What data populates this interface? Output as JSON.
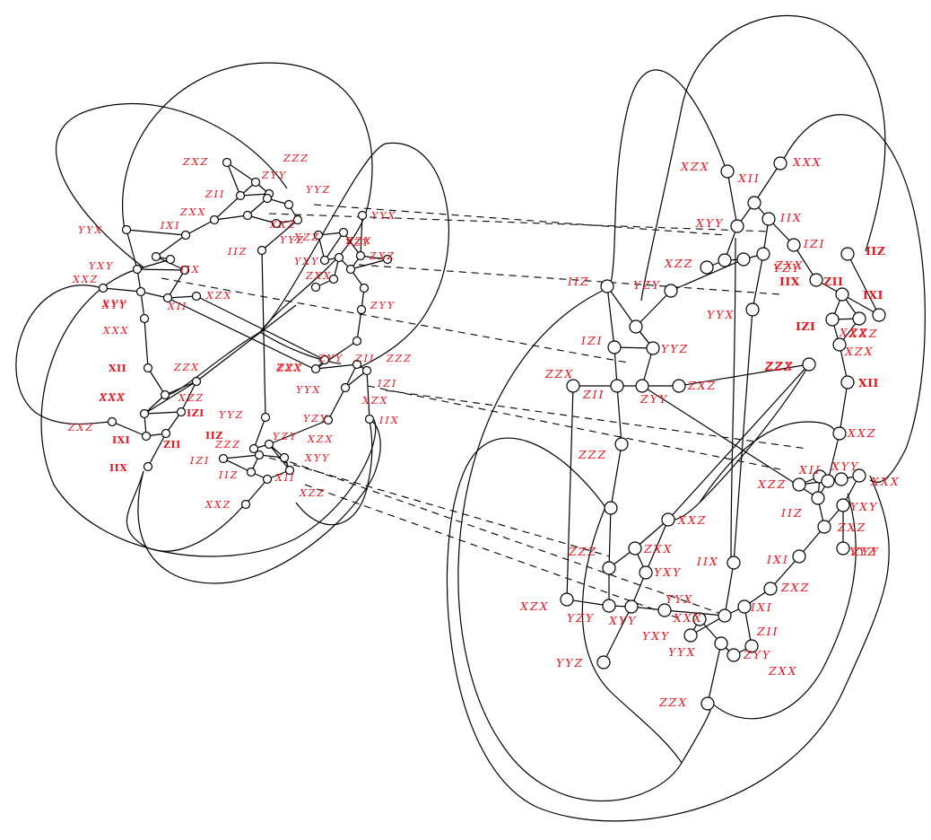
{
  "left_graph": {
    "labels": [
      {
        "t": "ZXZ",
        "bold": false
      },
      {
        "t": "ZZZ",
        "bold": false
      },
      {
        "t": "ZYY",
        "bold": false
      },
      {
        "t": "ZII",
        "bold": false
      },
      {
        "t": "YYZ",
        "bold": false
      },
      {
        "t": "ZXX",
        "bold": false
      },
      {
        "t": "IXI",
        "bold": false
      },
      {
        "t": "XXZ",
        "bold": false
      },
      {
        "t": "YXY",
        "bold": false
      },
      {
        "t": "YYX",
        "bold": false
      },
      {
        "t": "YYX",
        "bold": false
      },
      {
        "t": "IIZ",
        "bold": false
      },
      {
        "t": "XYY",
        "bold": false
      },
      {
        "t": "YYZ",
        "bold": false
      },
      {
        "t": "YZY",
        "bold": false
      },
      {
        "t": "XZZ",
        "bold": false
      },
      {
        "t": "YXY",
        "bold": false
      },
      {
        "t": "ZXX",
        "bold": false
      },
      {
        "t": "ZXZ",
        "bold": false
      },
      {
        "t": "XXZ",
        "bold": false
      },
      {
        "t": "IIX",
        "bold": false
      },
      {
        "t": "ZZX",
        "bold": false
      },
      {
        "t": "XZX",
        "bold": false
      },
      {
        "t": "XXX",
        "bold": false
      },
      {
        "t": "XYY",
        "bold": false
      },
      {
        "t": "XII",
        "bold": false
      },
      {
        "t": "ZYY",
        "bold": false
      },
      {
        "t": "XXX",
        "bold": false
      },
      {
        "t": "ZZX",
        "bold": false
      },
      {
        "t": "XII",
        "bold": true
      },
      {
        "t": "ZZX",
        "bold": false
      },
      {
        "t": "ZYY",
        "bold": false
      },
      {
        "t": "ZII",
        "bold": false
      },
      {
        "t": "ZZZ",
        "bold": false
      },
      {
        "t": "ZXX",
        "bold": false
      },
      {
        "t": "XXX",
        "bold": false
      },
      {
        "t": "XZZ",
        "bold": false
      },
      {
        "t": "YYX",
        "bold": false
      },
      {
        "t": "IZI",
        "bold": false
      },
      {
        "t": "XZX",
        "bold": false
      },
      {
        "t": "IZI",
        "bold": true
      },
      {
        "t": "ZXZ",
        "bold": false
      },
      {
        "t": "YYZ",
        "bold": false
      },
      {
        "t": "IIX",
        "bold": false
      },
      {
        "t": "YZY",
        "bold": false
      },
      {
        "t": "IIZ",
        "bold": true
      },
      {
        "t": "IXI",
        "bold": true
      },
      {
        "t": "ZII",
        "bold": true
      },
      {
        "t": "YZY",
        "bold": false
      },
      {
        "t": "XZX",
        "bold": false
      },
      {
        "t": "ZZZ",
        "bold": false
      },
      {
        "t": "IZI",
        "bold": false
      },
      {
        "t": "XYY",
        "bold": false
      },
      {
        "t": "IIX",
        "bold": true
      },
      {
        "t": "IIZ",
        "bold": false
      },
      {
        "t": "XII",
        "bold": false
      },
      {
        "t": "XZZ",
        "bold": false
      },
      {
        "t": "XXZ",
        "bold": false
      }
    ]
  },
  "right_graph": {
    "labels": [
      {
        "t": "XZX",
        "bold": false
      },
      {
        "t": "XII",
        "bold": false
      },
      {
        "t": "XXX",
        "bold": false
      },
      {
        "t": "XYY",
        "bold": false
      },
      {
        "t": "IIX",
        "bold": false
      },
      {
        "t": "IZI",
        "bold": false
      },
      {
        "t": "IIZ",
        "bold": true
      },
      {
        "t": "XZZ",
        "bold": false
      },
      {
        "t": "ZZX",
        "bold": false
      },
      {
        "t": "YZY",
        "bold": false
      },
      {
        "t": "IIX",
        "bold": true
      },
      {
        "t": "ZII",
        "bold": true
      },
      {
        "t": "IXI",
        "bold": true
      },
      {
        "t": "IIZ",
        "bold": false
      },
      {
        "t": "YZY",
        "bold": false
      },
      {
        "t": "YYX",
        "bold": false
      },
      {
        "t": "ZXX",
        "bold": false
      },
      {
        "t": "XZZ",
        "bold": false
      },
      {
        "t": "IZI",
        "bold": true
      },
      {
        "t": "XXZ",
        "bold": false
      },
      {
        "t": "IZI",
        "bold": false
      },
      {
        "t": "YYZ",
        "bold": false
      },
      {
        "t": "XZX",
        "bold": false
      },
      {
        "t": "ZZZ",
        "bold": false
      },
      {
        "t": "ZZX",
        "bold": false
      },
      {
        "t": "XII",
        "bold": true
      },
      {
        "t": "ZII",
        "bold": false
      },
      {
        "t": "ZYY",
        "bold": false
      },
      {
        "t": "ZXZ",
        "bold": false
      },
      {
        "t": "XXZ",
        "bold": false
      },
      {
        "t": "ZZZ",
        "bold": false
      },
      {
        "t": "XII",
        "bold": false
      },
      {
        "t": "XYY",
        "bold": false
      },
      {
        "t": "XZZ",
        "bold": false
      },
      {
        "t": "XXX",
        "bold": false
      },
      {
        "t": "IIZ",
        "bold": false
      },
      {
        "t": "YXY",
        "bold": false
      },
      {
        "t": "ZXZ",
        "bold": false
      },
      {
        "t": "ZYY",
        "bold": false
      },
      {
        "t": "XXZ",
        "bold": false
      },
      {
        "t": "YYZ",
        "bold": false
      },
      {
        "t": "ZZZ",
        "bold": false
      },
      {
        "t": "ZXX",
        "bold": false
      },
      {
        "t": "IXI",
        "bold": false
      },
      {
        "t": "IIX",
        "bold": false
      },
      {
        "t": "YXY",
        "bold": false
      },
      {
        "t": "ZXZ",
        "bold": false
      },
      {
        "t": "XZX",
        "bold": false
      },
      {
        "t": "YZY",
        "bold": false
      },
      {
        "t": "XYY",
        "bold": false
      },
      {
        "t": "YYX",
        "bold": false
      },
      {
        "t": "XXX",
        "bold": false
      },
      {
        "t": "IXI",
        "bold": false
      },
      {
        "t": "YXY",
        "bold": false
      },
      {
        "t": "ZII",
        "bold": false
      },
      {
        "t": "YYX",
        "bold": false
      },
      {
        "t": "ZYY",
        "bold": false
      },
      {
        "t": "ZXX",
        "bold": false
      },
      {
        "t": "YYZ",
        "bold": false
      },
      {
        "t": "ZZX",
        "bold": false
      }
    ]
  },
  "colors": {
    "label": "#e8141c",
    "line": "#000000",
    "node_fill": "#ffffff"
  }
}
